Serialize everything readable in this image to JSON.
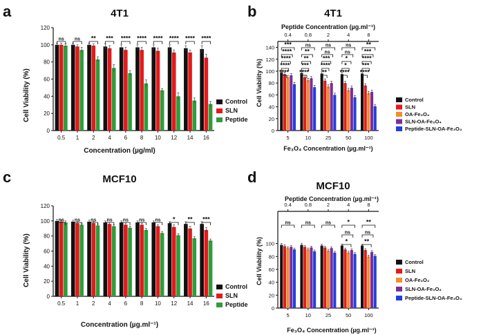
{
  "colors": {
    "control": "#111111",
    "sln": "#e41a1c",
    "peptide": "#2e9d3a",
    "oa_fe3o4": "#f28e2b",
    "sln_oa_fe3o4": "#7b2d9c",
    "pep_sln_oa_fe3o4": "#1f3fe0"
  },
  "chart_data": [
    {
      "panel": "a",
      "type": "bar",
      "title": "4T1",
      "xlabel": "Concentration (µg/ml)",
      "ylabel": "Cell Viability (%)",
      "ylim": [
        0,
        120
      ],
      "yticks": [
        "0",
        "20",
        "40",
        "60",
        "80",
        "100",
        "120"
      ],
      "grid": false,
      "legend_position": "right",
      "categories": [
        "0.5",
        "1",
        "2",
        "4",
        "6",
        "8",
        "10",
        "12",
        "14",
        "16"
      ],
      "series": [
        {
          "name": "Control",
          "color_key": "control",
          "values": [
            100,
            100,
            100,
            98,
            97,
            97,
            97,
            97,
            96,
            95
          ],
          "errors": [
            2,
            2,
            2,
            3,
            3,
            3,
            3,
            3,
            3,
            4
          ]
        },
        {
          "name": "SLN",
          "color_key": "sln",
          "values": [
            100,
            98,
            99,
            96,
            94,
            94,
            93,
            91,
            91,
            85
          ],
          "errors": [
            2,
            2,
            2,
            3,
            3,
            3,
            3,
            3,
            3,
            4
          ]
        },
        {
          "name": "Peptide",
          "color_key": "peptide",
          "values": [
            99,
            94,
            83,
            73,
            67,
            55,
            47,
            40,
            35,
            31
          ],
          "errors": [
            2,
            3,
            3,
            4,
            3,
            4,
            2,
            4,
            3,
            3
          ]
        }
      ],
      "significance": [
        "ns",
        "ns",
        "**",
        "***",
        "****",
        "****",
        "****",
        "****",
        "****",
        "****"
      ]
    },
    {
      "panel": "b",
      "type": "bar",
      "title": "4T1",
      "xlabel": "Fe₃O₄ Concentration (µg.ml⁻¹)",
      "x2label": "Peptide Concentration (µg.ml⁻¹)",
      "x2ticks": [
        "0.4",
        "0.8",
        "2",
        "4",
        "8"
      ],
      "ylabel": "Cell Viability (%)",
      "ylim": [
        0,
        150
      ],
      "yticks": [
        "0",
        "20",
        "40",
        "60",
        "80",
        "100",
        "120",
        "140"
      ],
      "grid": false,
      "legend_position": "right",
      "categories": [
        "5",
        "10",
        "25",
        "50",
        "100"
      ],
      "series": [
        {
          "name": "Control",
          "color_key": "control",
          "values": [
            98,
            97,
            96,
            95,
            96
          ],
          "errors": [
            3,
            3,
            3,
            3,
            3
          ]
        },
        {
          "name": "SLN",
          "color_key": "sln",
          "values": [
            95,
            90,
            84,
            80,
            76
          ],
          "errors": [
            3,
            3,
            3,
            3,
            3
          ]
        },
        {
          "name": "OA-Fe₃O₄",
          "color_key": "oa_fe3o4",
          "values": [
            90,
            85,
            74,
            68,
            63
          ],
          "errors": [
            3,
            3,
            3,
            3,
            3
          ]
        },
        {
          "name": "SLN-OA-Fe₃O₄",
          "color_key": "sln_oa_fe3o4",
          "values": [
            93,
            88,
            80,
            72,
            65
          ],
          "errors": [
            3,
            3,
            3,
            3,
            3
          ]
        },
        {
          "name": "Peptide-SLN-OA-Fe₃O₄",
          "color_key": "pep_sln_oa_fe3o4",
          "values": [
            78,
            73,
            60,
            56,
            41
          ],
          "errors": [
            3,
            3,
            3,
            3,
            3
          ]
        }
      ],
      "significance": [
        [
          "***",
          "ns",
          "ns",
          "ns",
          "**"
        ],
        [
          "****",
          "**",
          "ns",
          "ns",
          "***"
        ],
        [
          "****",
          "**",
          "***",
          "*",
          "****"
        ],
        [
          "****",
          "***",
          "****",
          "*",
          "***"
        ],
        [
          "****",
          "****",
          "**",
          "****",
          "****"
        ]
      ]
    },
    {
      "panel": "c",
      "type": "bar",
      "title": "MCF10",
      "xlabel": "Concentration (µg.ml⁻¹)",
      "ylabel": "Cell Viability (%)",
      "ylim": [
        0,
        120
      ],
      "yticks": [
        "0",
        "20",
        "40",
        "60",
        "80",
        "100",
        "120"
      ],
      "grid": false,
      "legend_position": "right",
      "categories": [
        "0.5",
        "1",
        "2",
        "4",
        "6",
        "8",
        "10",
        "12",
        "14",
        "16"
      ],
      "series": [
        {
          "name": "Control",
          "color_key": "control",
          "values": [
            100,
            99,
            99,
            98,
            98,
            98,
            98,
            97,
            96,
            96
          ],
          "errors": [
            2,
            2,
            2,
            2,
            2,
            2,
            2,
            2,
            3,
            3
          ]
        },
        {
          "name": "SLN",
          "color_key": "sln",
          "values": [
            99,
            97,
            97,
            96,
            95,
            95,
            93,
            92,
            90,
            88
          ],
          "errors": [
            2,
            2,
            2,
            2,
            2,
            2,
            2,
            3,
            3,
            3
          ]
        },
        {
          "name": "Peptide",
          "color_key": "peptide",
          "values": [
            98,
            95,
            94,
            93,
            91,
            88,
            84,
            81,
            77,
            74
          ],
          "errors": [
            2,
            2,
            2,
            2,
            2,
            2,
            2,
            2,
            2,
            2
          ]
        }
      ],
      "significance": [
        "ns",
        "ns",
        "ns",
        "ns",
        "ns",
        "ns",
        "ns",
        "*",
        "**",
        "***"
      ]
    },
    {
      "panel": "d",
      "type": "bar",
      "title": "MCF10",
      "xlabel": "Fe₃O₄ Concentration (µg.ml⁻¹)",
      "x2label": "Peptide Concentration (µg.ml⁻¹)",
      "x2ticks": [
        "0.4",
        "0.8",
        "2",
        "4",
        "8"
      ],
      "ylabel": "Cell Viability (%)",
      "ylim": [
        0,
        150
      ],
      "yticks": [
        "0",
        "20",
        "40",
        "60",
        "80",
        "100"
      ],
      "grid": false,
      "legend_position": "right",
      "categories": [
        "5",
        "10",
        "25",
        "50",
        "100"
      ],
      "series": [
        {
          "name": "Control",
          "color_key": "control",
          "values": [
            98,
            98,
            97,
            97,
            97
          ],
          "errors": [
            2,
            2,
            2,
            2,
            2
          ]
        },
        {
          "name": "SLN",
          "color_key": "sln",
          "values": [
            96,
            95,
            94,
            91,
            90
          ],
          "errors": [
            2,
            2,
            2,
            2,
            2
          ]
        },
        {
          "name": "OA-Fe₃O₄",
          "color_key": "oa_fe3o4",
          "values": [
            93,
            91,
            89,
            86,
            80
          ],
          "errors": [
            2,
            2,
            2,
            2,
            2
          ]
        },
        {
          "name": "SLN-OA-Fe₃O₄",
          "color_key": "sln_oa_fe3o4",
          "values": [
            95,
            94,
            93,
            90,
            87
          ],
          "errors": [
            2,
            2,
            2,
            2,
            2
          ]
        },
        {
          "name": "Peptide-SLN-OA-Fe₃O₄",
          "color_key": "pep_sln_oa_fe3o4",
          "values": [
            91,
            88,
            86,
            84,
            81
          ],
          "errors": [
            2,
            2,
            2,
            2,
            2
          ]
        }
      ],
      "significance": [
        [
          "ns",
          "ns",
          "ns",
          "*",
          "**"
        ],
        [
          "",
          "",
          "",
          "ns",
          "ns"
        ],
        [
          "",
          "",
          "",
          "*",
          "**"
        ]
      ]
    }
  ]
}
